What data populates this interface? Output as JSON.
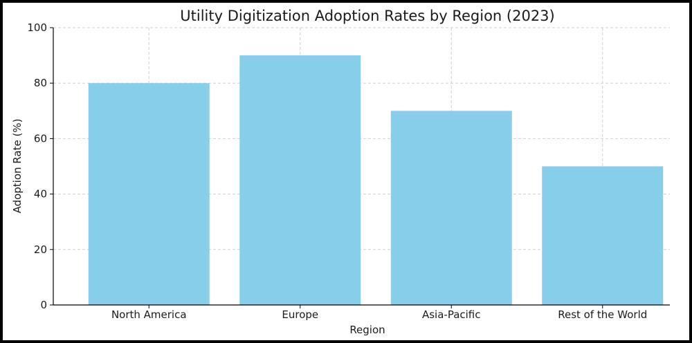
{
  "chart_data": {
    "type": "bar",
    "title": "Utility Digitization Adoption Rates by Region (2023)",
    "xlabel": "Region",
    "ylabel": "Adoption Rate (%)",
    "categories": [
      "North America",
      "Europe",
      "Asia-Pacific",
      "Rest of the World"
    ],
    "values": [
      80,
      90,
      70,
      50
    ],
    "ylim": [
      0,
      100
    ],
    "yticks": [
      "0",
      "20",
      "40",
      "60",
      "80",
      "100"
    ],
    "grid": true,
    "bar_color": "#87ceeb"
  }
}
